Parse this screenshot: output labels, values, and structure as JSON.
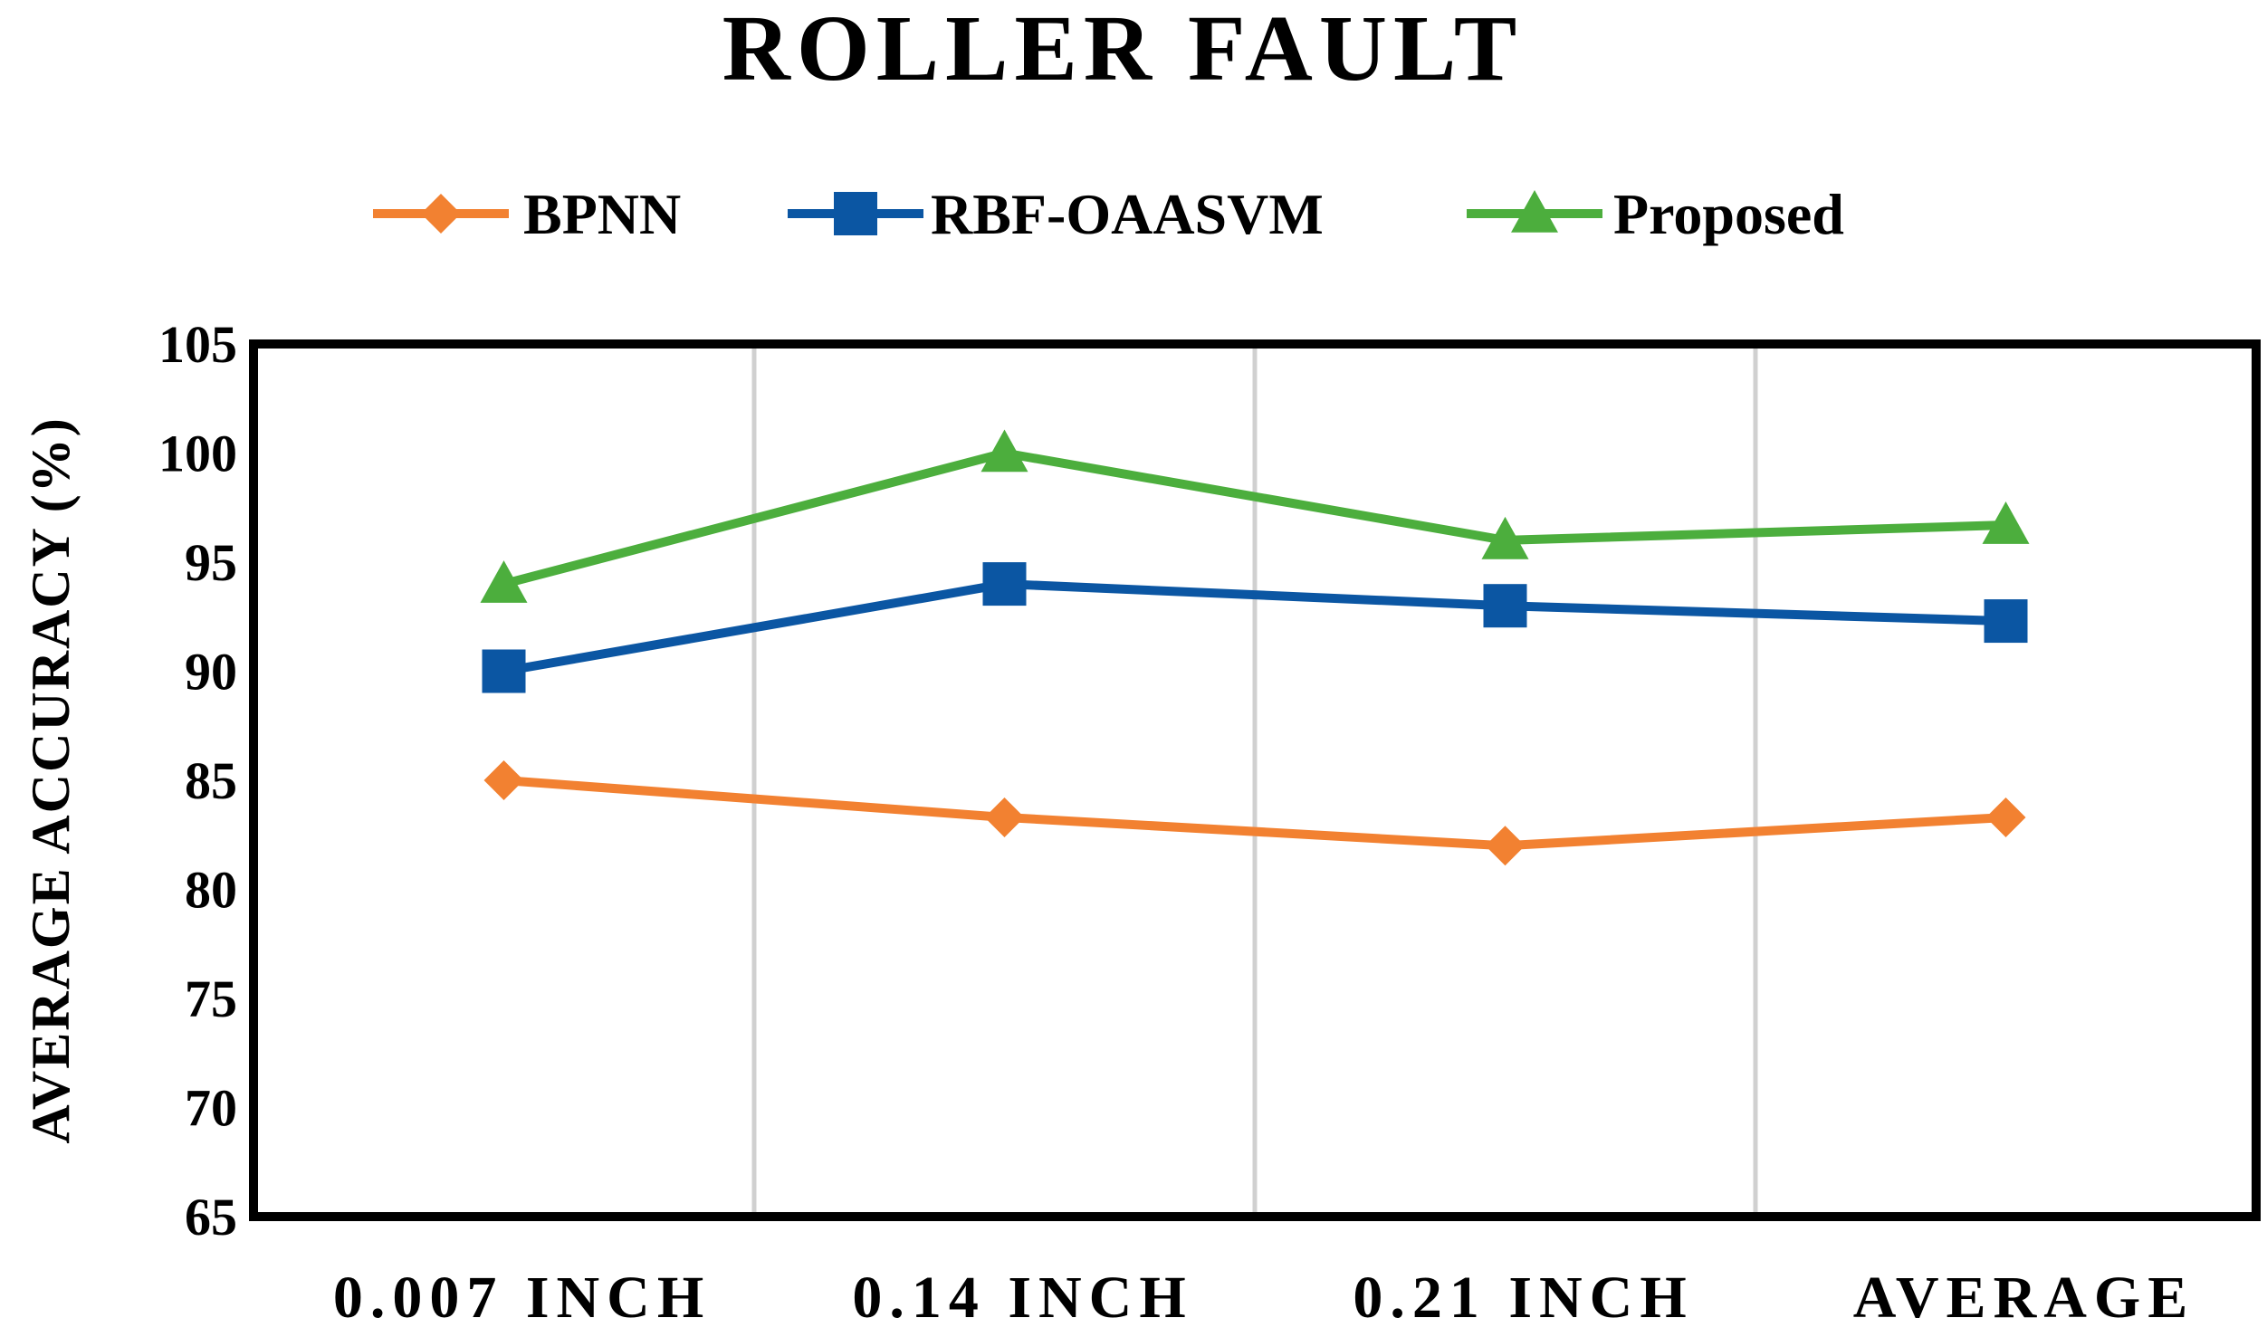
{
  "chart_data": {
    "type": "line",
    "title": "ROLLER FAULT",
    "xlabel": "",
    "ylabel": "AVERAGE ACCURACY (%)",
    "categories": [
      "0.007 INCH",
      "0.14 INCH",
      "0.21 INCH",
      "AVERAGE"
    ],
    "ylim": [
      65,
      105
    ],
    "yticks": [
      65,
      70,
      75,
      80,
      85,
      90,
      95,
      100,
      105
    ],
    "grid": "vertical",
    "legend_position": "top",
    "series": [
      {
        "name": "BPNN",
        "color": "#F28131",
        "marker": "diamond",
        "values": [
          85.0,
          83.3,
          82.0,
          83.3
        ]
      },
      {
        "name": "RBF-OAASVM",
        "color": "#0B56A3",
        "marker": "square",
        "values": [
          90.0,
          94.0,
          93.0,
          92.3
        ]
      },
      {
        "name": "Proposed",
        "color": "#4CAE3D",
        "marker": "triangle",
        "values": [
          94.0,
          100.0,
          96.0,
          96.7
        ]
      }
    ]
  }
}
